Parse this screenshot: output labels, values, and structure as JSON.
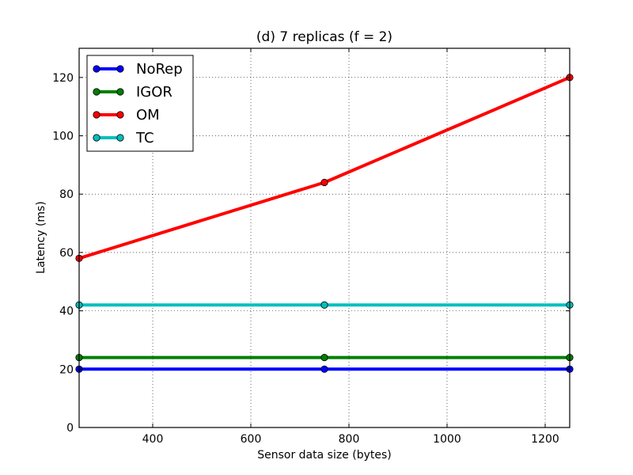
{
  "chart_data": {
    "type": "line",
    "title": "(d) 7 replicas (f = 2)",
    "xlabel": "Sensor data size (bytes)",
    "ylabel": "Latency (ms)",
    "x": [
      250,
      750,
      1250
    ],
    "xlim": [
      250,
      1250
    ],
    "ylim": [
      0,
      130
    ],
    "xticks": [
      400,
      600,
      800,
      1000,
      1200
    ],
    "yticks": [
      0,
      20,
      40,
      60,
      80,
      100,
      120
    ],
    "grid": true,
    "legend_position": "top-left",
    "series": [
      {
        "name": "NoRep",
        "color": "#0000ff",
        "values": [
          20,
          20,
          20
        ]
      },
      {
        "name": "IGOR",
        "color": "#007f00",
        "values": [
          24,
          24,
          24
        ]
      },
      {
        "name": "OM",
        "color": "#ff0000",
        "values": [
          58,
          84,
          120
        ]
      },
      {
        "name": "TC",
        "color": "#00bfbf",
        "values": [
          42,
          42,
          42
        ]
      }
    ]
  }
}
